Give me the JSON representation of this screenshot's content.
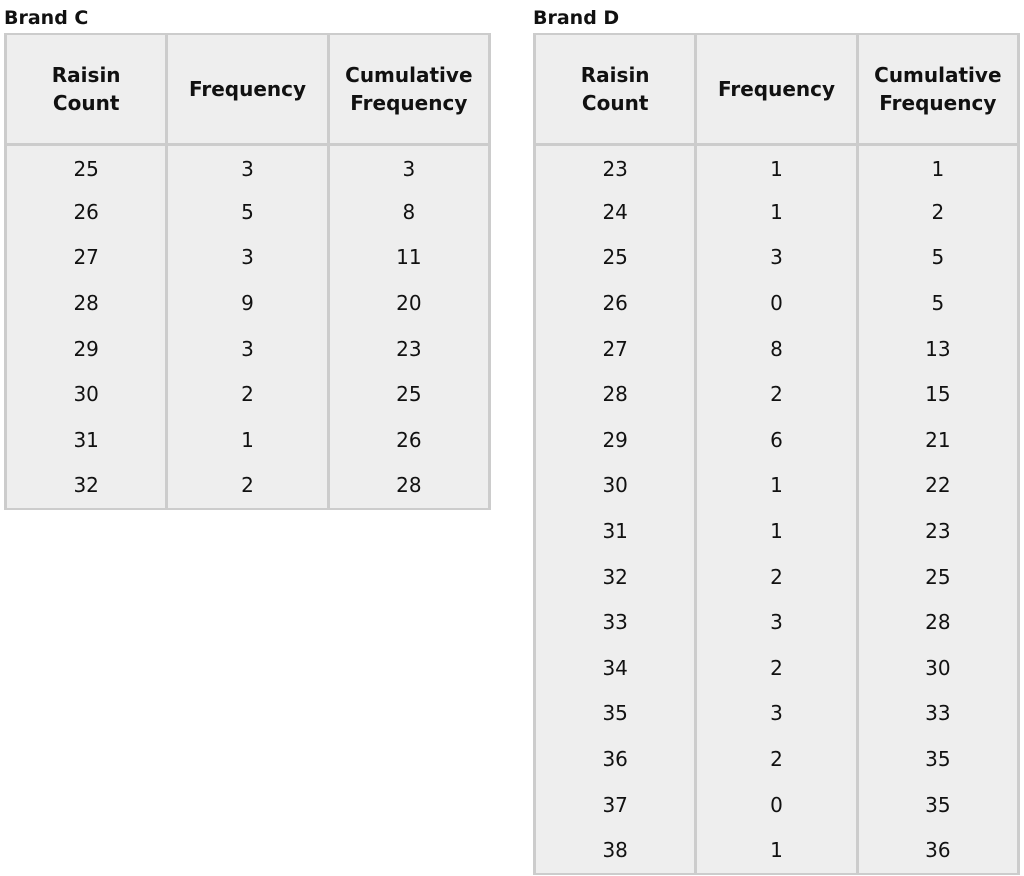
{
  "tables": [
    {
      "title": "Brand C",
      "headers": [
        "Raisin Count",
        "Frequency",
        "Cumulative Frequency"
      ],
      "rows": [
        [
          "25",
          "3",
          "3"
        ],
        [
          "26",
          "5",
          "8"
        ],
        [
          "27",
          "3",
          "11"
        ],
        [
          "28",
          "9",
          "20"
        ],
        [
          "29",
          "3",
          "23"
        ],
        [
          "30",
          "2",
          "25"
        ],
        [
          "31",
          "1",
          "26"
        ],
        [
          "32",
          "2",
          "28"
        ]
      ]
    },
    {
      "title": "Brand D",
      "headers": [
        "Raisin Count",
        "Frequency",
        "Cumulative Frequency"
      ],
      "rows": [
        [
          "23",
          "1",
          "1"
        ],
        [
          "24",
          "1",
          "2"
        ],
        [
          "25",
          "3",
          "5"
        ],
        [
          "26",
          "0",
          "5"
        ],
        [
          "27",
          "8",
          "13"
        ],
        [
          "28",
          "2",
          "15"
        ],
        [
          "29",
          "6",
          "21"
        ],
        [
          "30",
          "1",
          "22"
        ],
        [
          "31",
          "1",
          "23"
        ],
        [
          "32",
          "2",
          "25"
        ],
        [
          "33",
          "3",
          "28"
        ],
        [
          "34",
          "2",
          "30"
        ],
        [
          "35",
          "3",
          "33"
        ],
        [
          "36",
          "2",
          "35"
        ],
        [
          "37",
          "0",
          "35"
        ],
        [
          "38",
          "1",
          "36"
        ]
      ]
    }
  ],
  "colors": {
    "cell_background": "#eeeeee",
    "border": "#cccccc"
  }
}
